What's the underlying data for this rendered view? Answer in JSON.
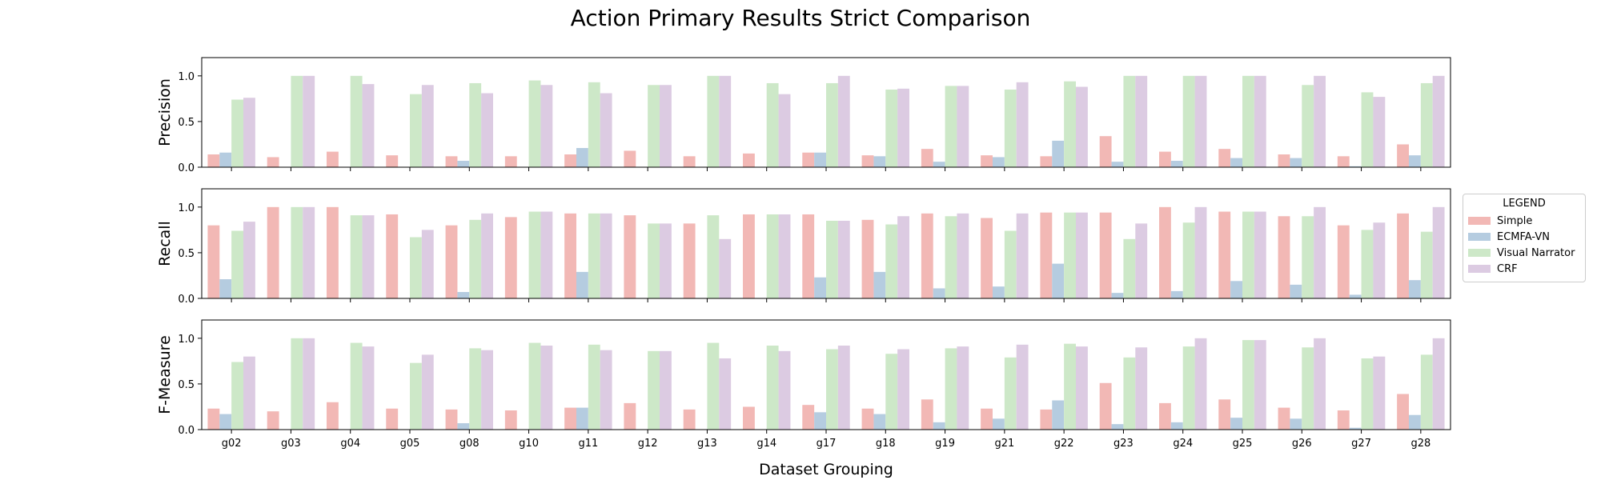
{
  "chart_data": {
    "type": "bar",
    "title": "Action Primary Results Strict Comparison",
    "xlabel": "Dataset Grouping",
    "categories": [
      "g02",
      "g03",
      "g04",
      "g05",
      "g08",
      "g10",
      "g11",
      "g12",
      "g13",
      "g14",
      "g17",
      "g18",
      "g19",
      "g21",
      "g22",
      "g23",
      "g24",
      "g25",
      "g26",
      "g27",
      "g28"
    ],
    "legend": {
      "title": "LEGEND",
      "placement": "outside-right",
      "entries": [
        {
          "label": "Simple",
          "color": "#f2b8b5"
        },
        {
          "label": "ECMFA-VN",
          "color": "#b5cce0"
        },
        {
          "label": "Visual Narrator",
          "color": "#cde8c8"
        },
        {
          "label": "CRF",
          "color": "#dccbe2"
        }
      ]
    },
    "yticks": [
      "0.0",
      "0.5",
      "1.0"
    ],
    "ylim": [
      0,
      1.2
    ],
    "panels": [
      {
        "ylabel": "Precision",
        "series": [
          {
            "name": "Simple",
            "values": [
              0.14,
              0.11,
              0.17,
              0.13,
              0.12,
              0.12,
              0.14,
              0.18,
              0.12,
              0.15,
              0.16,
              0.13,
              0.2,
              0.13,
              0.12,
              0.34,
              0.17,
              0.2,
              0.14,
              0.12,
              0.25
            ]
          },
          {
            "name": "ECMFA-VN",
            "values": [
              0.16,
              0,
              0,
              0,
              0.07,
              0,
              0.21,
              0,
              0,
              0,
              0.16,
              0.12,
              0.06,
              0.11,
              0.29,
              0.06,
              0.07,
              0.1,
              0.1,
              0.01,
              0.13
            ]
          },
          {
            "name": "Visual Narrator",
            "values": [
              0.74,
              1.0,
              1.0,
              0.8,
              0.92,
              0.95,
              0.93,
              0.9,
              1.0,
              0.92,
              0.92,
              0.85,
              0.89,
              0.85,
              0.94,
              1.0,
              1.0,
              1.0,
              0.9,
              0.82,
              0.92
            ]
          },
          {
            "name": "CRF",
            "values": [
              0.76,
              1.0,
              0.91,
              0.9,
              0.81,
              0.9,
              0.81,
              0.9,
              1.0,
              0.8,
              1.0,
              0.86,
              0.89,
              0.93,
              0.88,
              1.0,
              1.0,
              1.0,
              1.0,
              0.77,
              1.0
            ]
          }
        ]
      },
      {
        "ylabel": "Recall",
        "series": [
          {
            "name": "Simple",
            "values": [
              0.8,
              1.0,
              1.0,
              0.92,
              0.8,
              0.89,
              0.93,
              0.91,
              0.82,
              0.92,
              0.92,
              0.86,
              0.93,
              0.88,
              0.94,
              0.94,
              1.0,
              0.95,
              0.9,
              0.8,
              0.93
            ]
          },
          {
            "name": "ECMFA-VN",
            "values": [
              0.21,
              0,
              0,
              0,
              0.07,
              0,
              0.29,
              0,
              0,
              0,
              0.23,
              0.29,
              0.11,
              0.13,
              0.38,
              0.06,
              0.08,
              0.19,
              0.15,
              0.04,
              0.2
            ]
          },
          {
            "name": "Visual Narrator",
            "values": [
              0.74,
              1.0,
              0.91,
              0.67,
              0.86,
              0.95,
              0.93,
              0.82,
              0.91,
              0.92,
              0.85,
              0.81,
              0.9,
              0.74,
              0.94,
              0.65,
              0.83,
              0.95,
              0.9,
              0.75,
              0.73
            ]
          },
          {
            "name": "CRF",
            "values": [
              0.84,
              1.0,
              0.91,
              0.75,
              0.93,
              0.95,
              0.93,
              0.82,
              0.65,
              0.92,
              0.85,
              0.9,
              0.93,
              0.93,
              0.94,
              0.82,
              1.0,
              0.95,
              1.0,
              0.83,
              1.0
            ]
          }
        ]
      },
      {
        "ylabel": "F-Measure",
        "series": [
          {
            "name": "Simple",
            "values": [
              0.23,
              0.2,
              0.3,
              0.23,
              0.22,
              0.21,
              0.24,
              0.29,
              0.22,
              0.25,
              0.27,
              0.23,
              0.33,
              0.23,
              0.22,
              0.51,
              0.29,
              0.33,
              0.24,
              0.21,
              0.39
            ]
          },
          {
            "name": "ECMFA-VN",
            "values": [
              0.17,
              0,
              0,
              0,
              0.07,
              0,
              0.24,
              0,
              0,
              0,
              0.19,
              0.17,
              0.08,
              0.12,
              0.32,
              0.06,
              0.08,
              0.13,
              0.12,
              0.02,
              0.16
            ]
          },
          {
            "name": "Visual Narrator",
            "values": [
              0.74,
              1.0,
              0.95,
              0.73,
              0.89,
              0.95,
              0.93,
              0.86,
              0.95,
              0.92,
              0.88,
              0.83,
              0.89,
              0.79,
              0.94,
              0.79,
              0.91,
              0.98,
              0.9,
              0.78,
              0.82
            ]
          },
          {
            "name": "CRF",
            "values": [
              0.8,
              1.0,
              0.91,
              0.82,
              0.87,
              0.92,
              0.87,
              0.86,
              0.78,
              0.86,
              0.92,
              0.88,
              0.91,
              0.93,
              0.91,
              0.9,
              1.0,
              0.98,
              1.0,
              0.8,
              1.0
            ]
          }
        ]
      }
    ]
  }
}
